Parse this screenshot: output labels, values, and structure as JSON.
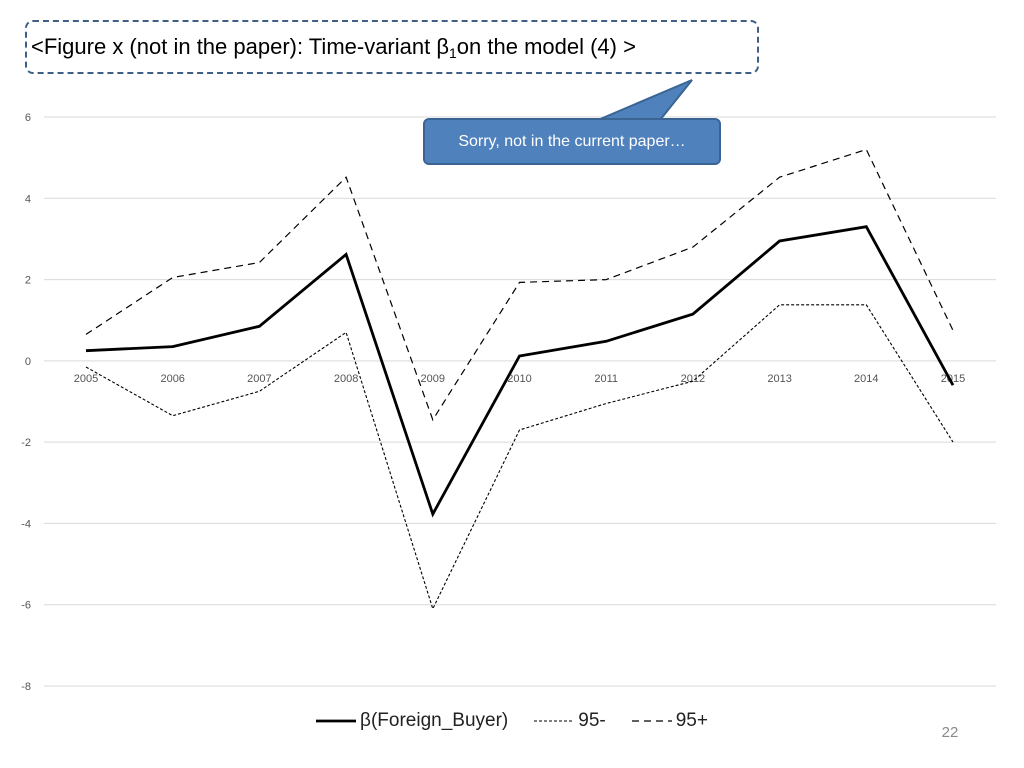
{
  "slide": {
    "title_prefix": "<Figure x (not in the paper): Time-variant β",
    "title_subscript": "1",
    "title_suffix": " on the model (4) >",
    "callout_text": "Sorry, not in the current paper…",
    "page_number": "22"
  },
  "chart_data": {
    "type": "line",
    "title": "",
    "xlabel": "",
    "ylabel": "",
    "categories": [
      "2005",
      "2006",
      "2007",
      "2008",
      "2009",
      "2010",
      "2011",
      "2012",
      "2013",
      "2014",
      "2015"
    ],
    "ylim": [
      -8,
      6
    ],
    "yticks": [
      6,
      4,
      2,
      0,
      -2,
      -4,
      -6,
      -8
    ],
    "grid": true,
    "legend_position": "bottom",
    "series": [
      {
        "name": "β(Foreign_Buyer)",
        "style": "solid",
        "color": "#000000",
        "values": [
          0.25,
          0.35,
          0.85,
          2.62,
          -3.77,
          0.12,
          0.48,
          1.15,
          2.95,
          3.3,
          -0.6
        ]
      },
      {
        "name": "95-",
        "style": "dotted",
        "color": "#000000",
        "values": [
          -0.15,
          -1.35,
          -0.75,
          0.7,
          -6.1,
          -1.7,
          -1.05,
          -0.5,
          1.38,
          1.38,
          -2.0
        ]
      },
      {
        "name": "95+",
        "style": "dashed",
        "color": "#000000",
        "values": [
          0.65,
          2.05,
          2.42,
          4.52,
          -1.45,
          1.93,
          2.0,
          2.8,
          4.52,
          5.2,
          0.75
        ]
      }
    ]
  }
}
